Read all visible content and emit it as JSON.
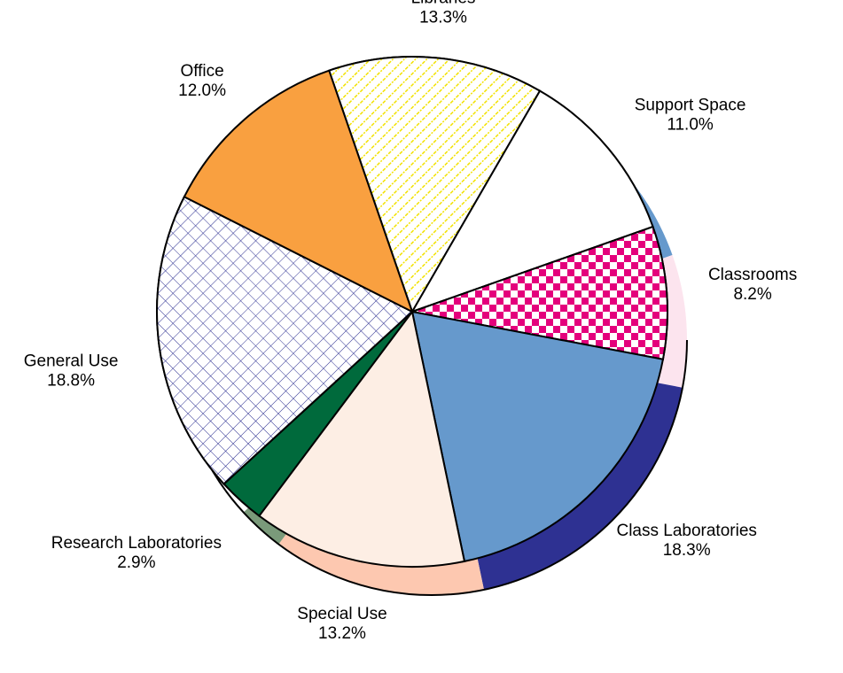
{
  "chart_data": {
    "type": "pie",
    "categories": [
      "Libraries",
      "Support Space",
      "Classrooms",
      "Class Laboratories",
      "Special Use",
      "Research Laboratories",
      "General Use",
      "Office"
    ],
    "values": [
      13.3,
      11.0,
      8.2,
      18.3,
      13.2,
      2.9,
      18.8,
      12.0
    ],
    "value_labels": [
      "13.3%",
      "11.0%",
      "8.2%",
      "18.3%",
      "13.2%",
      "2.9%",
      "18.8%",
      "12.0%"
    ],
    "colors": [
      "#ffffff",
      "#ffffff",
      "#ffffff",
      "#6699cc",
      "#fdeee4",
      "#006a3c",
      "#ffffff",
      "#f9a040"
    ],
    "patterns": [
      "diagonal",
      "none",
      "checker",
      "none",
      "none",
      "none",
      "crosshatch",
      "none"
    ],
    "depth_colors": [
      "#ffffff",
      "#6699cc",
      "#fce4ee",
      "#2e3192",
      "#fdc8b0",
      "#7a9a7a",
      "#ffffff",
      "#f9a040"
    ],
    "start_angle": -19
  }
}
